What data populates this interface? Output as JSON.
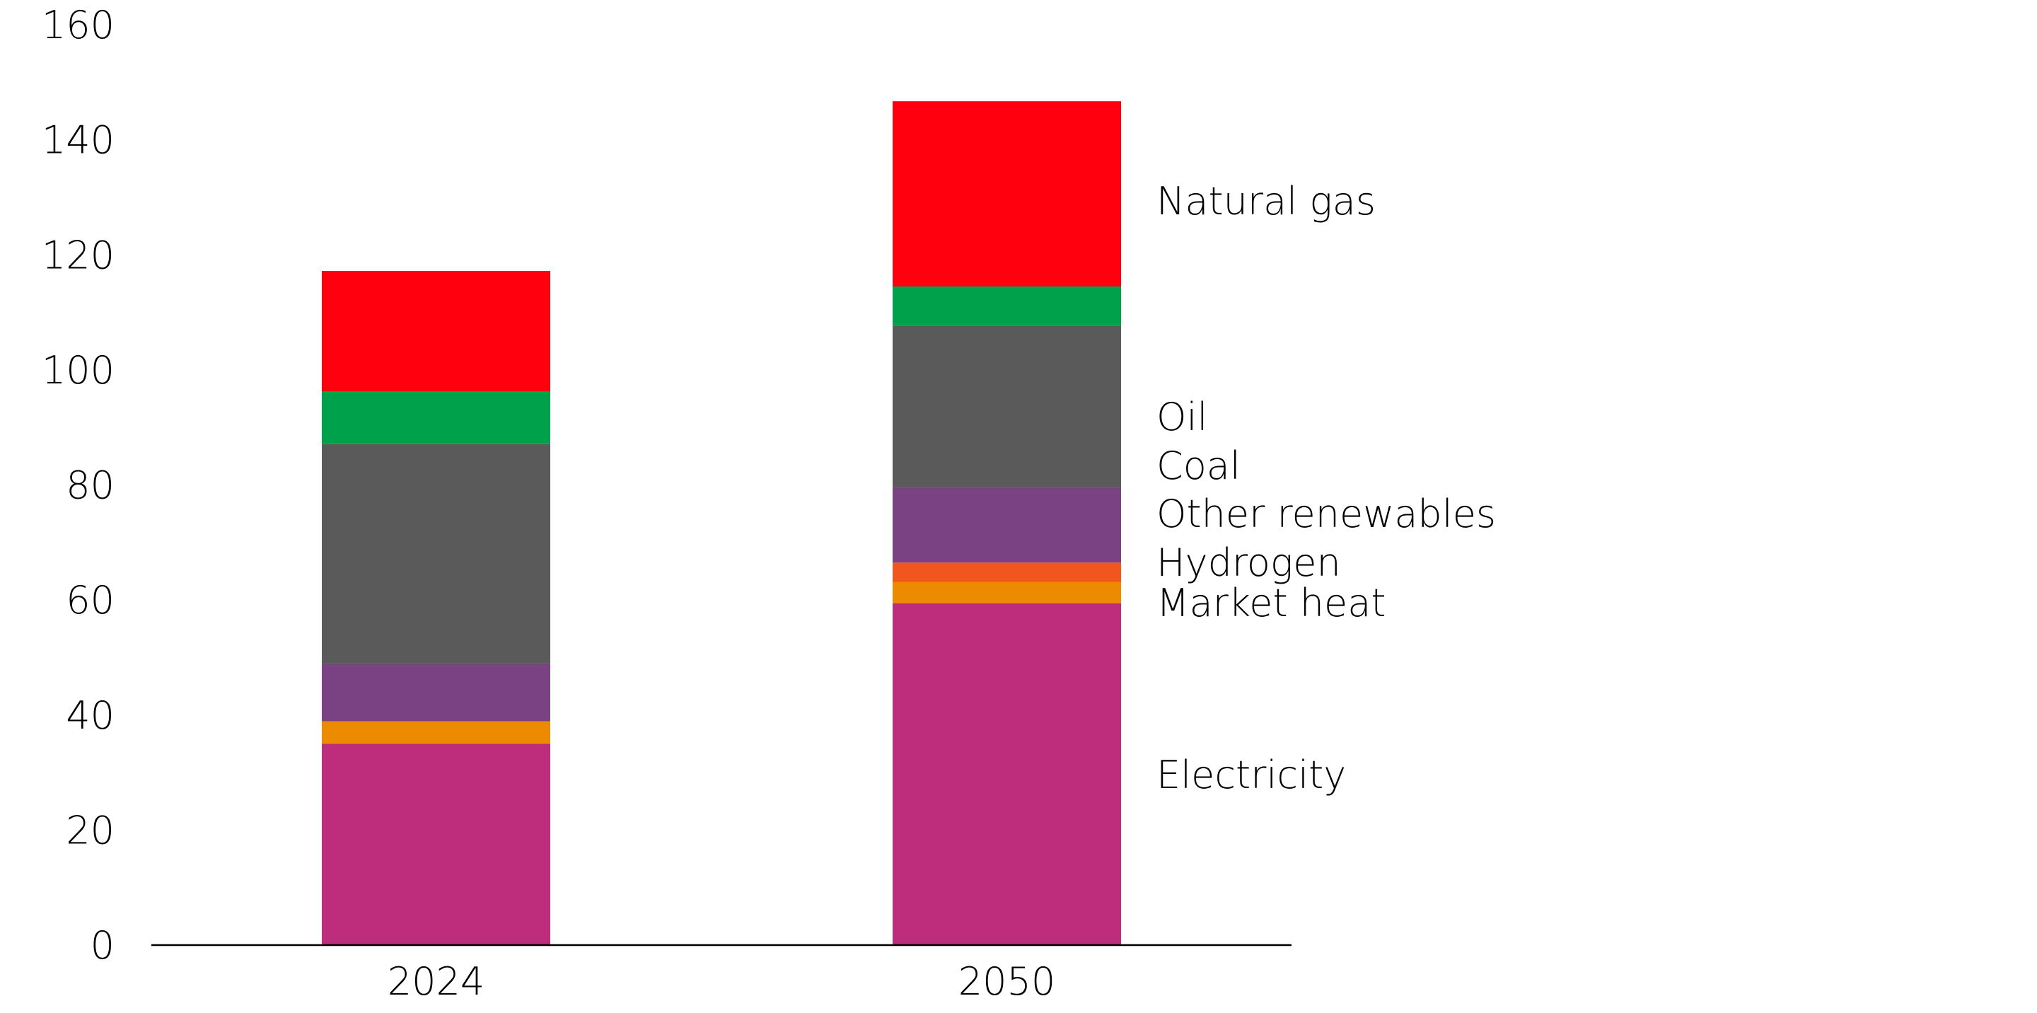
{
  "chart_data": {
    "type": "bar",
    "stacked": true,
    "title": "",
    "xlabel": "",
    "ylabel": "",
    "categories": [
      "2024",
      "2050"
    ],
    "ylim": [
      0,
      160
    ],
    "yticks": [
      0,
      20,
      40,
      60,
      80,
      100,
      120,
      140,
      160
    ],
    "grid": false,
    "legend": "direct labels right of 2050 bar",
    "series": [
      {
        "name": "Electricity",
        "values": [
          35.0,
          59.4
        ],
        "color": "#BE2D7B"
      },
      {
        "name": "Market heat",
        "values": [
          3.9,
          3.7
        ],
        "color": "#EC8A00"
      },
      {
        "name": "Hydrogen",
        "values": [
          0,
          3.4
        ],
        "color": "#F0561E"
      },
      {
        "name": "Other renewables",
        "values": [
          10.0,
          13.0
        ],
        "color": "#7B4283"
      },
      {
        "name": "Coal",
        "values": [
          38.2,
          28.2
        ],
        "color": "#5A5A5A"
      },
      {
        "name": "Oil",
        "values": [
          9.1,
          6.8
        ],
        "color": "#00A14B"
      },
      {
        "name": "Natural gas",
        "values": [
          21.0,
          32.2
        ],
        "color": "#FF000F"
      }
    ]
  }
}
